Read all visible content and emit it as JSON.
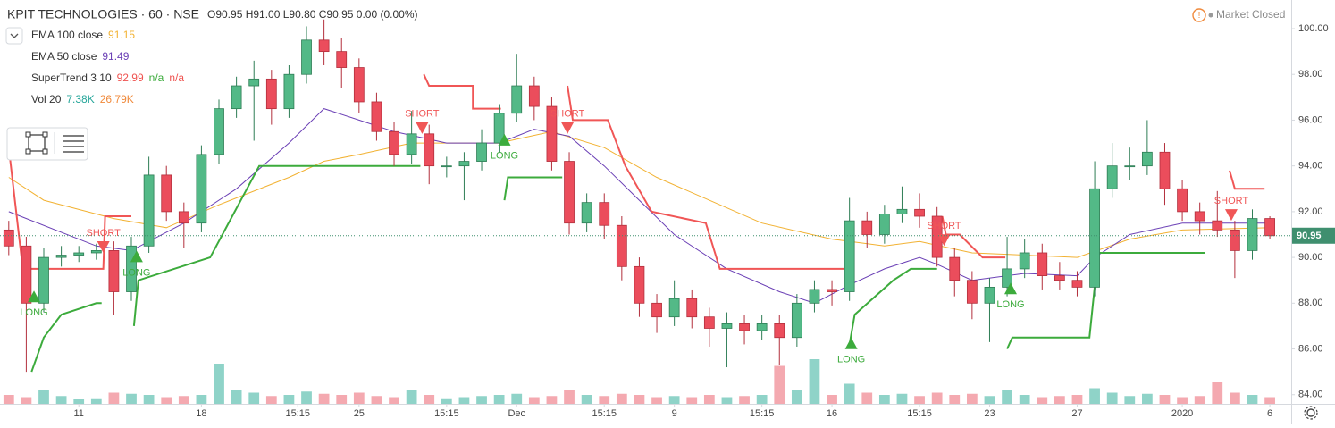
{
  "chart_data": {
    "type": "candlestick",
    "title": "KPIT TECHNOLOGIES · 60 · NSE",
    "ohlc_summary": "O90.95 H91.00 L90.80 C90.95 0.00 (0.00%)",
    "status": "Market Closed",
    "up_color": "#53b987",
    "down_color": "#eb4d5c",
    "volume_up_color": "#8fd3c8",
    "volume_down_color": "#f4a9b0",
    "open": [
      91.2,
      90.5,
      88,
      90,
      90.1,
      90.2,
      90.3,
      88.5,
      90.5,
      93.6,
      92,
      91.5,
      94.5,
      96.5,
      97.5,
      97.8,
      96.5,
      98,
      99.5,
      99,
      98.3,
      96.8,
      95.5,
      94.5,
      95.4,
      94,
      94,
      94.2,
      95,
      96.3,
      97.5,
      96.6,
      94.2,
      91.5,
      92.4,
      91.4,
      89.6,
      88,
      87.4,
      88.2,
      87.4,
      86.9,
      87.1,
      86.8,
      87.1,
      86.5,
      88,
      88.6,
      88.5,
      91.6,
      91,
      91.9,
      92.1,
      91.8,
      90,
      89,
      88,
      88.7,
      89.5,
      90.2,
      89.2,
      89,
      88.7,
      93,
      94,
      94,
      94.6,
      93,
      92,
      91.6,
      91.2,
      90.3,
      91.7
    ],
    "high": [
      91.6,
      90.9,
      90.4,
      90.5,
      90.5,
      90.6,
      90.7,
      90.9,
      94.4,
      94.0,
      92.4,
      94.9,
      96.9,
      97.9,
      98.6,
      98.2,
      98.4,
      100.1,
      100.4,
      99.6,
      98.7,
      97.2,
      95.9,
      96.4,
      95.8,
      94.4,
      94.6,
      95.6,
      96.7,
      98.9,
      97.9,
      97.0,
      94.6,
      92.8,
      92.8,
      91.8,
      90.0,
      88.4,
      89.0,
      88.6,
      87.8,
      87.6,
      87.5,
      87.5,
      87.5,
      88.4,
      89.0,
      89.0,
      92.6,
      92.0,
      92.3,
      93.1,
      92.8,
      92.2,
      90.4,
      89.4,
      89.1,
      90.9,
      90.8,
      90.6,
      89.8,
      89.4,
      94.2,
      95.0,
      94.8,
      96.0,
      95.0,
      93.4,
      92.4,
      92.9,
      91.6,
      92.1,
      91.8
    ],
    "low": [
      90.1,
      85.0,
      87.6,
      89.6,
      89.8,
      89.9,
      87.5,
      88.1,
      90.2,
      91.6,
      90.4,
      91.1,
      94.1,
      96.1,
      95.1,
      95.8,
      96.1,
      97.6,
      98.4,
      97.4,
      96.3,
      95.1,
      94.0,
      94.1,
      93.2,
      93.5,
      92.5,
      93.8,
      94.6,
      95.9,
      96.0,
      93.8,
      91.0,
      91.1,
      90.8,
      89.0,
      87.4,
      86.7,
      87.0,
      86.9,
      86.1,
      85.2,
      86.2,
      86.4,
      85.3,
      86.1,
      87.6,
      87.9,
      88.1,
      90.4,
      90.6,
      91.5,
      91.3,
      89.6,
      88.3,
      87.3,
      86.3,
      88.3,
      89.1,
      88.6,
      88.6,
      88.3,
      88.3,
      92.6,
      93.4,
      93.6,
      92.3,
      91.6,
      91.0,
      90.9,
      89.1,
      89.9,
      90.8
    ],
    "close": [
      90.5,
      88,
      90,
      90.1,
      90.2,
      90.3,
      88.5,
      90.5,
      93.6,
      92,
      91.5,
      94.5,
      96.5,
      97.5,
      97.8,
      96.5,
      98,
      99.5,
      99,
      98.3,
      96.8,
      95.5,
      94.5,
      95.4,
      94,
      94,
      94.2,
      95,
      96.3,
      97.5,
      96.6,
      94.2,
      91.5,
      92.4,
      91.4,
      89.6,
      88,
      87.4,
      88.2,
      87.4,
      86.9,
      87.1,
      86.8,
      87.1,
      86.5,
      88,
      88.6,
      88.5,
      91.6,
      91,
      91.9,
      92.1,
      91.8,
      90,
      89,
      88,
      88.7,
      89.5,
      90.2,
      89.2,
      89,
      88.7,
      93,
      94,
      94,
      94.6,
      93,
      92,
      91.6,
      91.2,
      90.3,
      91.7,
      90.95
    ],
    "volume": [
      40,
      30,
      60,
      35,
      20,
      25,
      50,
      45,
      40,
      30,
      35,
      40,
      180,
      60,
      50,
      35,
      40,
      55,
      45,
      40,
      50,
      35,
      30,
      60,
      40,
      25,
      30,
      35,
      40,
      45,
      30,
      35,
      60,
      40,
      35,
      45,
      40,
      30,
      35,
      30,
      40,
      30,
      35,
      40,
      170,
      60,
      200,
      40,
      90,
      50,
      40,
      45,
      35,
      50,
      40,
      45,
      35,
      60,
      40,
      30,
      35,
      40,
      70,
      50,
      35,
      45,
      40,
      30,
      35,
      100,
      50,
      40,
      30
    ],
    "vlim": [
      0,
      400
    ],
    "xlim": [
      -0.5,
      73.22
    ],
    "xticks": [
      {
        "value": 4,
        "label": "11"
      },
      {
        "value": 11,
        "label": "18"
      },
      {
        "value": 16.5,
        "label": "15:15"
      },
      {
        "value": 20,
        "label": "25"
      },
      {
        "value": 25,
        "label": "15:15"
      },
      {
        "value": 29,
        "label": "Dec"
      },
      {
        "value": 34,
        "label": "15:15"
      },
      {
        "value": 38,
        "label": "9"
      },
      {
        "value": 43,
        "label": "15:15"
      },
      {
        "value": 47,
        "label": "16"
      },
      {
        "value": 52,
        "label": "15:15"
      },
      {
        "value": 56,
        "label": "23"
      },
      {
        "value": 61,
        "label": "27"
      },
      {
        "value": 67,
        "label": "2020"
      },
      {
        "value": 72,
        "label": "6"
      }
    ],
    "ylim": [
      83.6,
      101.25
    ],
    "yticks": [
      {
        "value": 84,
        "label": "84.00"
      },
      {
        "value": 86,
        "label": "86.00"
      },
      {
        "value": 88,
        "label": "88.00"
      },
      {
        "value": 90,
        "label": "90.00"
      },
      {
        "value": 92,
        "label": "92.00"
      },
      {
        "value": 94,
        "label": "94.00"
      },
      {
        "value": 96,
        "label": "96.00"
      },
      {
        "value": 98,
        "label": "98.00"
      },
      {
        "value": 100,
        "label": "100.00"
      }
    ],
    "ema": [
      {
        "name": "EMA 100 close",
        "color": "#f2b233",
        "readings": [
          91.15
        ],
        "x": [
          0,
          2,
          6,
          9,
          12,
          16,
          18,
          20,
          23,
          28,
          31,
          34,
          37,
          40,
          43,
          47,
          50,
          52,
          55,
          61,
          64,
          67,
          72
        ],
        "values": [
          93.5,
          92.5,
          91.7,
          91.3,
          92.3,
          93.5,
          94.2,
          94.5,
          95,
          95,
          95.5,
          94.8,
          93.5,
          92.5,
          91.5,
          90.8,
          90.5,
          90.7,
          90.2,
          90,
          90.8,
          91.2,
          91.3
        ]
      },
      {
        "name": "EMA 50 close",
        "color": "#6a3fb5",
        "readings": [
          91.49
        ],
        "x": [
          0,
          5,
          7,
          10,
          13,
          16,
          18,
          20,
          22,
          25,
          28,
          30,
          32,
          34,
          36,
          38,
          41,
          44,
          46,
          48,
          50,
          52,
          53,
          55,
          58,
          61,
          62,
          64,
          67,
          72
        ],
        "values": [
          92,
          90.5,
          90.3,
          91.5,
          93,
          95,
          96.5,
          96,
          95.5,
          95,
          95,
          95.6,
          95.3,
          94,
          92.5,
          91,
          89.5,
          88.5,
          88,
          88.8,
          89.5,
          90,
          89.7,
          89,
          89.3,
          89.2,
          90,
          91,
          91.5,
          91.5
        ]
      }
    ],
    "supertrend": {
      "name": "SuperTrend 3 10",
      "readings": [
        92.99,
        "n/a",
        "n/a"
      ],
      "reading_colors": [
        "#ef5350",
        "#3cab3c",
        "#ef5350"
      ],
      "down_color": "#f05656",
      "up_color": "#3cab3c",
      "down": {
        "x": [
          0,
          0.8,
          5.4,
          5.5,
          7.0,
          null,
          23.7,
          24,
          26.5,
          26.5,
          28.1,
          null,
          31.9,
          32.2,
          34.2,
          35.2,
          36.7,
          39.8,
          40.6,
          47.7,
          null,
          53.3,
          53.5,
          54.3,
          55.6,
          56.9,
          null,
          69.7,
          70,
          71.7
        ],
        "values": [
          94.8,
          89.5,
          89.5,
          91.8,
          91.8,
          null,
          98,
          97.5,
          97.5,
          96.5,
          96.5,
          null,
          97.5,
          96,
          96,
          94,
          92,
          91.5,
          89.5,
          89.5,
          null,
          91.8,
          91,
          91,
          90,
          90,
          null,
          93.8,
          93,
          93
        ]
      },
      "up": {
        "x": [
          1.3,
          2,
          3,
          5,
          5.3,
          null,
          7.15,
          7.4,
          11.5,
          14.3,
          23.5,
          null,
          28.3,
          28.5,
          31.6,
          null,
          48,
          48.3,
          50.5,
          51.5,
          53,
          null,
          57,
          57.3,
          61.7,
          62.2,
          68.3
        ],
        "values": [
          85,
          86.5,
          87.5,
          88,
          88,
          null,
          87,
          89,
          90,
          94,
          94,
          null,
          92.5,
          93.5,
          93.5,
          null,
          86.2,
          87.5,
          89,
          89.5,
          89.5,
          null,
          86,
          86.5,
          86.5,
          90.2,
          90.2
        ]
      }
    },
    "volume_indicator": {
      "name": "Vol 20",
      "readings": [
        "7.38K",
        "26.79K"
      ],
      "reading_colors": [
        "#26a69a",
        "#f08a3c"
      ]
    },
    "signals": [
      {
        "label": "LONG",
        "x": 1.44,
        "y": 88.55
      },
      {
        "label": "SHORT",
        "x": 5.4,
        "y": 90.2
      },
      {
        "label": "LONG",
        "x": 7.3,
        "y": 90.3
      },
      {
        "label": "SHORT",
        "x": 23.6,
        "y": 95.4
      },
      {
        "label": "LONG",
        "x": 28.3,
        "y": 95.4
      },
      {
        "label": "SHORT",
        "x": 31.9,
        "y": 95.4
      },
      {
        "label": "LONG",
        "x": 48.1,
        "y": 86.5
      },
      {
        "label": "SHORT",
        "x": 53.4,
        "y": 90.5
      },
      {
        "label": "LONG",
        "x": 57.2,
        "y": 88.9
      },
      {
        "label": "SHORT",
        "x": 69.8,
        "y": 91.6
      }
    ]
  }
}
